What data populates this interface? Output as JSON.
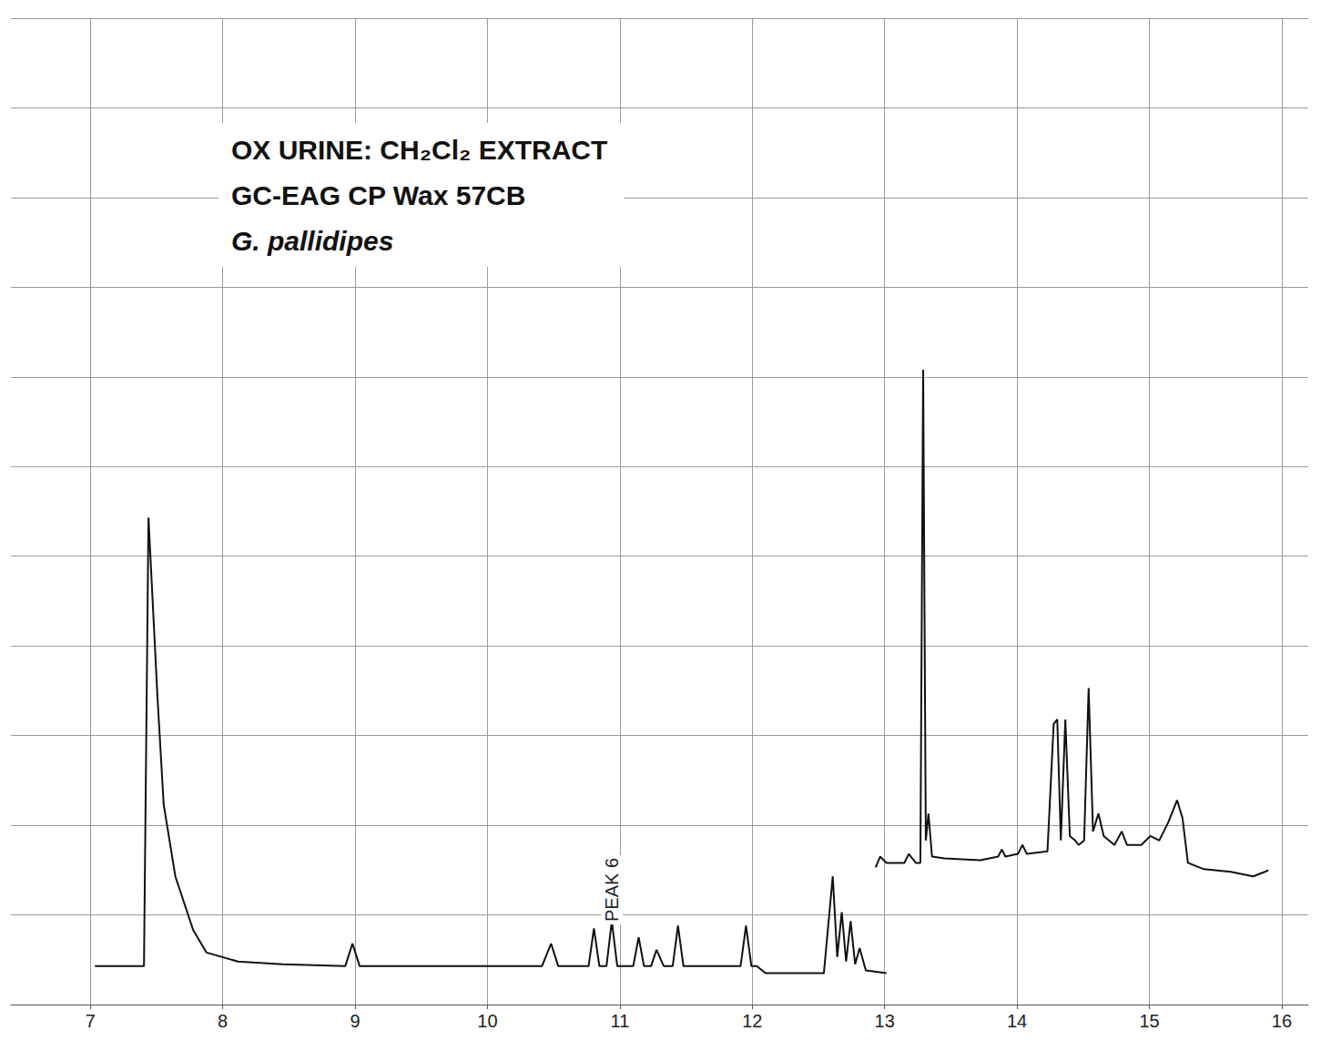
{
  "chart_data": {
    "type": "line",
    "title": "OX URINE: CH₂Cl₂ EXTRACT",
    "subtitle": [
      "GC-EAG CP Wax 57CB",
      "G. pallidipes"
    ],
    "annotations": [
      {
        "text": "PEAK 6",
        "x": 10.94,
        "y": 128
      }
    ],
    "xlim": [
      6.4,
      16.2
    ],
    "xticks": [
      7,
      8,
      9,
      10,
      11,
      12,
      13,
      14,
      15,
      16
    ],
    "ylim": [
      0,
      1100
    ],
    "yticks": [
      0,
      100,
      200,
      300,
      400,
      500,
      600,
      700,
      800,
      900,
      1000,
      1100
    ],
    "grid": true,
    "tick_labels": "x",
    "series": [
      {
        "color": "#111111",
        "x": [
          7.034,
          7.405,
          7.439,
          7.507,
          7.554,
          7.642,
          7.777,
          7.878,
          8.115,
          8.453,
          8.926,
          8.98,
          9.034,
          10.412,
          10.48,
          10.534,
          10.764,
          10.804,
          10.845,
          10.899,
          10.939,
          10.98,
          11.101,
          11.142,
          11.182,
          11.236,
          11.277,
          11.331,
          11.399,
          11.439,
          11.48,
          11.912,
          11.953,
          11.993,
          12.034,
          12.101,
          12.541,
          12.608,
          12.642,
          12.676,
          12.709,
          12.743,
          12.777,
          12.811,
          12.858,
          13.014
        ],
        "values": [
          43,
          43,
          543,
          343,
          223,
          143,
          83,
          58,
          48,
          45,
          43,
          68,
          43,
          43,
          68,
          43,
          43,
          85,
          43,
          43,
          93,
          43,
          43,
          75,
          43,
          43,
          61,
          43,
          43,
          88,
          43,
          43,
          88,
          43,
          43,
          35,
          35,
          143,
          53,
          103,
          48,
          93,
          45,
          63,
          38,
          35
        ]
      },
      {
        "color": "#111111",
        "x": [
          12.932,
          12.966,
          13.014,
          13.149,
          13.182,
          13.236,
          13.27,
          13.291,
          13.311,
          13.331,
          13.358,
          13.453,
          13.723,
          13.858,
          13.885,
          13.912,
          14.007,
          14.041,
          14.074,
          14.23,
          14.277,
          14.304,
          14.331,
          14.365,
          14.399,
          14.439,
          14.466,
          14.507,
          14.541,
          14.574,
          14.615,
          14.655,
          14.736,
          14.791,
          14.831,
          14.939,
          15.007,
          15.074,
          15.142,
          15.209,
          15.25,
          15.291,
          15.412,
          15.615,
          15.784,
          15.872,
          15.899
        ],
        "values": [
          153,
          165,
          158,
          158,
          168,
          158,
          158,
          708,
          183,
          213,
          165,
          163,
          161,
          165,
          173,
          165,
          168,
          178,
          168,
          171,
          313,
          318,
          183,
          318,
          188,
          183,
          178,
          183,
          353,
          193,
          213,
          188,
          178,
          193,
          178,
          178,
          188,
          183,
          203,
          228,
          208,
          158,
          151,
          148,
          143,
          148,
          150
        ]
      }
    ]
  }
}
